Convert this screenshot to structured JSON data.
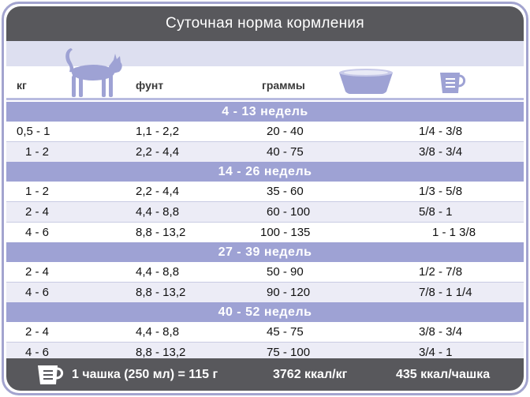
{
  "title": "Суточная норма кормления",
  "columns": {
    "kg": "кг",
    "lb": "фунт",
    "grams": "граммы",
    "bowl_icon": "bowl-icon",
    "cup_icon": "measuring-cup-icon",
    "cat_icon": "cat-silhouette-icon"
  },
  "sections": [
    {
      "label": "4 - 13 недель",
      "rows": [
        {
          "kg": "0,5 - 1",
          "lb": "1,1 - 2,2",
          "g": "20 - 40",
          "cups": "1/4 - 3/8"
        },
        {
          "kg": "1 - 2",
          "lb": "2,2 - 4,4",
          "g": "40 - 75",
          "cups": "3/8 - 3/4"
        }
      ]
    },
    {
      "label": "14 - 26 недель",
      "rows": [
        {
          "kg": "1 - 2",
          "lb": "2,2 - 4,4",
          "g": "35 - 60",
          "cups": "1/3 - 5/8"
        },
        {
          "kg": "2 - 4",
          "lb": "4,4 - 8,8",
          "g": "60 - 100",
          "cups": "5/8 - 1"
        },
        {
          "kg": "4 - 6",
          "lb": "8,8 - 13,2",
          "g": "100 - 135",
          "cups": "1 - 1 3/8"
        }
      ]
    },
    {
      "label": "27 - 39 недель",
      "rows": [
        {
          "kg": "2 - 4",
          "lb": "4,4 - 8,8",
          "g": "50 - 90",
          "cups": "1/2 - 7/8"
        },
        {
          "kg": "4 - 6",
          "lb": "8,8 - 13,2",
          "g": "90 - 120",
          "cups": "7/8 - 1 1/4"
        }
      ]
    },
    {
      "label": "40 - 52 недель",
      "rows": [
        {
          "kg": "2 - 4",
          "lb": "4,4 - 8,8",
          "g": "45 - 75",
          "cups": "3/8 - 3/4"
        },
        {
          "kg": "4 - 6",
          "lb": "8,8 - 13,2",
          "g": "75 - 100",
          "cups": "3/4 - 1"
        }
      ]
    }
  ],
  "footer": {
    "cup_text": "1 чашка (250 мл) = 115 г",
    "kcal_kg": "3762 ккал/кг",
    "kcal_cup": "435 ккал/чашка"
  },
  "colors": {
    "title_bar": "#58585c",
    "section_band": "#9ea2d4",
    "alt_row": "#ececf6",
    "frame": "#a3a4cf"
  }
}
